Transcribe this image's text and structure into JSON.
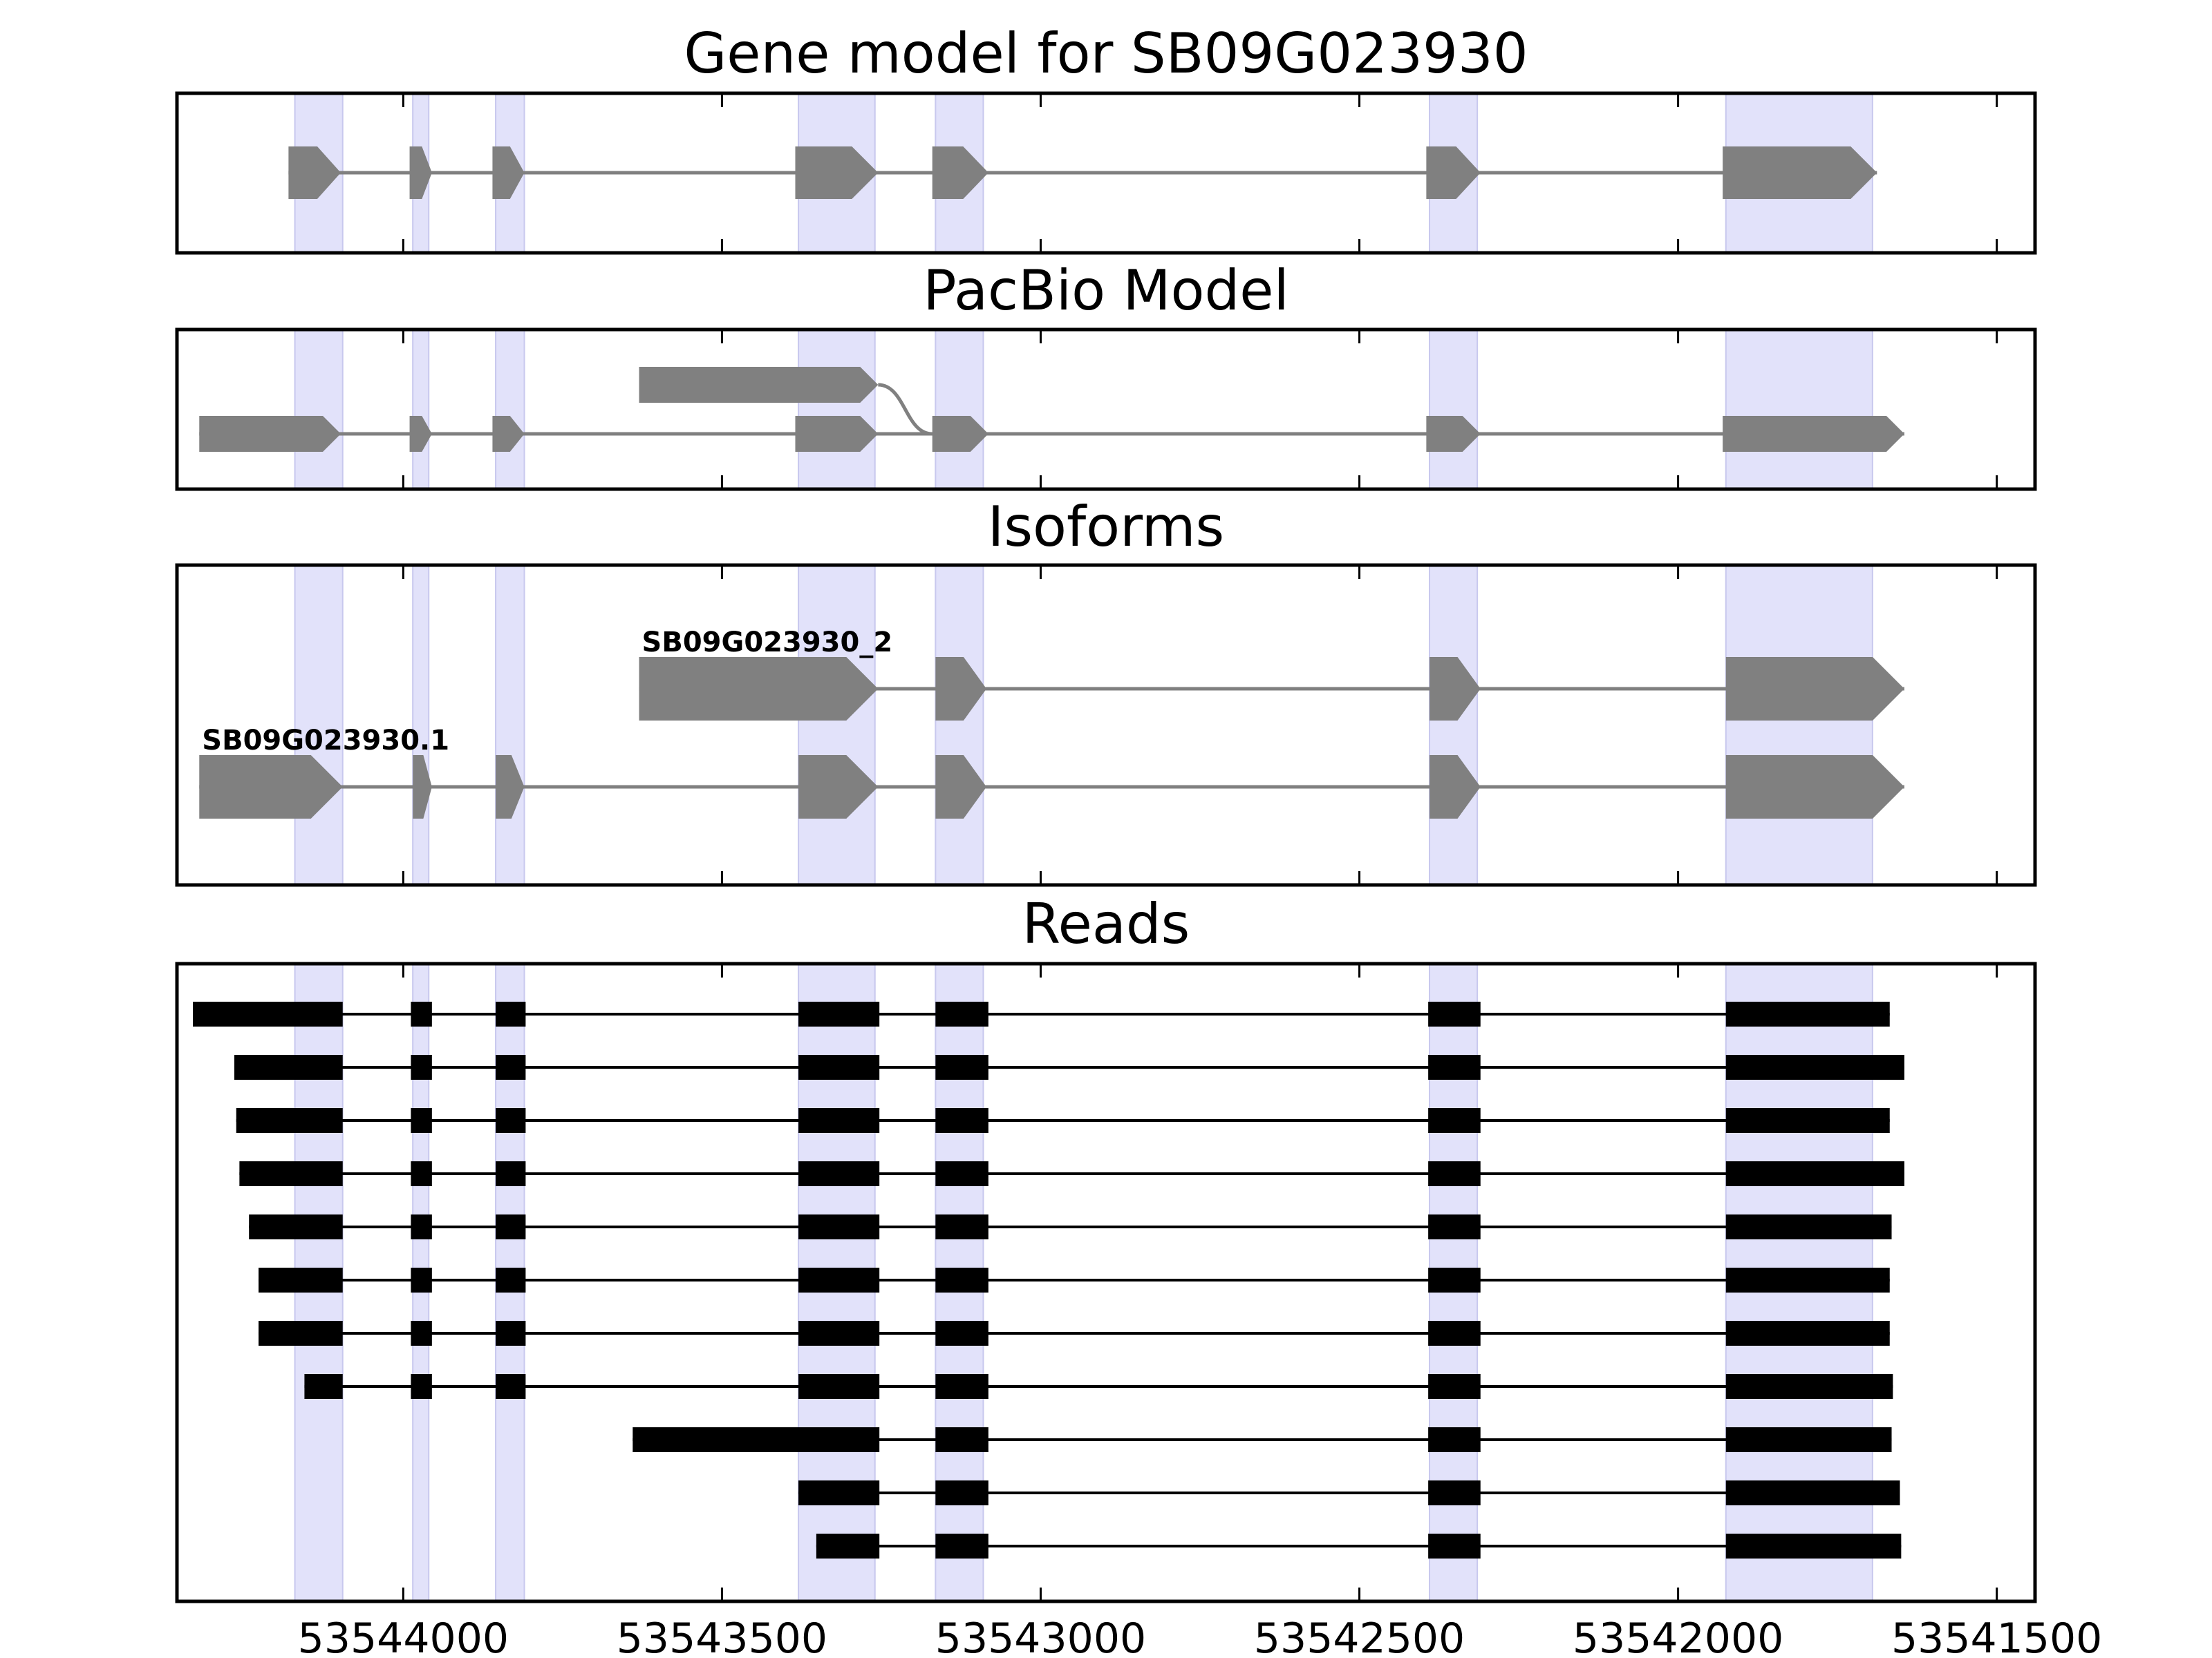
{
  "chart_data": {
    "type": "gene-track",
    "xlim": [
      53544355,
      53541440
    ],
    "x_axis_reversed": true,
    "xticks": [
      53544000,
      53543500,
      53543000,
      53542500,
      53542000,
      53541500
    ],
    "xtick_labels": [
      "53544000",
      "53543500",
      "53543000",
      "53542500",
      "53542000",
      "53541500"
    ],
    "highlight_color": "#e2e2fa",
    "feature_color": "#808080",
    "read_color": "#000000",
    "highlights": [
      [
        53544170,
        53544095
      ],
      [
        53543985,
        53543960
      ],
      [
        53543855,
        53543810
      ],
      [
        53543380,
        53543260
      ],
      [
        53543165,
        53543090
      ],
      [
        53542390,
        53542315
      ],
      [
        53541925,
        53541695
      ]
    ],
    "panels": [
      {
        "title": "Gene model for SB09G023930",
        "kind": "model",
        "transcripts": [
          {
            "label": "",
            "row": 0,
            "exons": [
              [
                53544180,
                53544098
              ],
              [
                53543990,
                53543955
              ],
              [
                53543860,
                53543810
              ],
              [
                53543385,
                53543255
              ],
              [
                53543170,
                53543082
              ],
              [
                53542395,
                53542310
              ],
              [
                53541930,
                53541688
              ]
            ]
          }
        ]
      },
      {
        "title": "PacBio Model",
        "kind": "pacbio",
        "transcripts": [
          {
            "label": "",
            "row": 1,
            "exons": [
              [
                53544320,
                53544098
              ],
              [
                53543990,
                53543955
              ],
              [
                53543860,
                53543810
              ],
              [
                53543385,
                53543255
              ],
              [
                53543170,
                53543082
              ],
              [
                53542395,
                53542310
              ],
              [
                53541930,
                53541645
              ]
            ]
          },
          {
            "label": "",
            "row": 0,
            "exons": [
              [
                53543630,
                53543255
              ]
            ],
            "connect_to_row": 1,
            "connect_to": 53543170
          }
        ]
      },
      {
        "title": "Isoforms",
        "kind": "isoforms",
        "transcripts": [
          {
            "label": "SB09G023930_2",
            "row": 0,
            "exons": [
              [
                53543630,
                53543255
              ],
              [
                53543165,
                53543085
              ],
              [
                53542390,
                53542310
              ],
              [
                53541925,
                53541645
              ]
            ]
          },
          {
            "label": "SB09G023930.1",
            "row": 1,
            "exons": [
              [
                53544320,
                53544095
              ],
              [
                53543985,
                53543955
              ],
              [
                53543855,
                53543810
              ],
              [
                53543380,
                53543255
              ],
              [
                53543165,
                53543085
              ],
              [
                53542390,
                53542310
              ],
              [
                53541925,
                53541645
              ]
            ]
          }
        ]
      },
      {
        "title": "Reads",
        "kind": "reads",
        "reads": [
          [
            [
              53544330,
              53544095
            ],
            [
              53543988,
              53543955
            ],
            [
              53543855,
              53543808
            ],
            [
              53543380,
              53543253
            ],
            [
              53543165,
              53543082
            ],
            [
              53542392,
              53542310
            ],
            [
              53541925,
              53541668
            ]
          ],
          [
            [
              53544265,
              53544095
            ],
            [
              53543988,
              53543955
            ],
            [
              53543855,
              53543808
            ],
            [
              53543380,
              53543253
            ],
            [
              53543165,
              53543082
            ],
            [
              53542392,
              53542310
            ],
            [
              53541925,
              53541645
            ]
          ],
          [
            [
              53544262,
              53544095
            ],
            [
              53543988,
              53543955
            ],
            [
              53543855,
              53543808
            ],
            [
              53543380,
              53543253
            ],
            [
              53543165,
              53543082
            ],
            [
              53542392,
              53542310
            ],
            [
              53541925,
              53541668
            ]
          ],
          [
            [
              53544257,
              53544095
            ],
            [
              53543988,
              53543955
            ],
            [
              53543855,
              53543808
            ],
            [
              53543380,
              53543253
            ],
            [
              53543165,
              53543082
            ],
            [
              53542392,
              53542310
            ],
            [
              53541925,
              53541645
            ]
          ],
          [
            [
              53544242,
              53544095
            ],
            [
              53543988,
              53543955
            ],
            [
              53543855,
              53543808
            ],
            [
              53543380,
              53543253
            ],
            [
              53543165,
              53543082
            ],
            [
              53542392,
              53542310
            ],
            [
              53541925,
              53541665
            ]
          ],
          [
            [
              53544227,
              53544095
            ],
            [
              53543988,
              53543955
            ],
            [
              53543855,
              53543808
            ],
            [
              53543380,
              53543253
            ],
            [
              53543165,
              53543082
            ],
            [
              53542392,
              53542310
            ],
            [
              53541925,
              53541668
            ]
          ],
          [
            [
              53544227,
              53544095
            ],
            [
              53543988,
              53543955
            ],
            [
              53543855,
              53543808
            ],
            [
              53543380,
              53543253
            ],
            [
              53543165,
              53543082
            ],
            [
              53542392,
              53542310
            ],
            [
              53541925,
              53541668
            ]
          ],
          [
            [
              53544155,
              53544095
            ],
            [
              53543988,
              53543955
            ],
            [
              53543855,
              53543808
            ],
            [
              53543380,
              53543253
            ],
            [
              53543165,
              53543082
            ],
            [
              53542392,
              53542310
            ],
            [
              53541925,
              53541663
            ]
          ],
          [
            [
              53543640,
              53543253
            ],
            [
              53543165,
              53543082
            ],
            [
              53542392,
              53542310
            ],
            [
              53541925,
              53541665
            ]
          ],
          [
            [
              53543380,
              53543253
            ],
            [
              53543165,
              53543082
            ],
            [
              53542392,
              53542310
            ],
            [
              53541925,
              53541652
            ]
          ],
          [
            [
              53543352,
              53543253
            ],
            [
              53543165,
              53543082
            ],
            [
              53542392,
              53542310
            ],
            [
              53541925,
              53541650
            ]
          ]
        ]
      }
    ]
  }
}
